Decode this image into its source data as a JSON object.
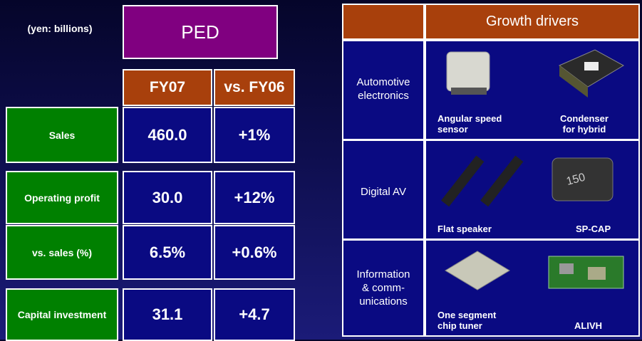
{
  "unit_note": "(yen: billions)",
  "segment": "PED",
  "columns": [
    "FY07",
    "vs. FY06"
  ],
  "rows": [
    {
      "label": "Sales",
      "values": [
        "460.0",
        "+1%"
      ]
    },
    {
      "label": "Operating profit",
      "values": [
        "30.0",
        "+12%"
      ]
    },
    {
      "label": "vs. sales (%)",
      "values": [
        "6.5%",
        "+0.6%"
      ]
    },
    {
      "label": "Capital investment",
      "values": [
        "31.1",
        "+4.7"
      ]
    }
  ],
  "drivers": {
    "title": "Growth drivers",
    "rows": [
      {
        "category": [
          "Automotive",
          "electronics"
        ],
        "items": [
          [
            "Angular speed",
            "sensor"
          ],
          [
            "Condenser",
            "for hybrid"
          ]
        ]
      },
      {
        "category": [
          "Digital AV"
        ],
        "items": [
          [
            "Flat speaker"
          ],
          [
            "SP-CAP"
          ]
        ]
      },
      {
        "category": [
          "Information",
          "& comm-",
          "unications"
        ],
        "items": [
          [
            "One segment",
            "chip tuner"
          ],
          [
            "ALIVH"
          ]
        ]
      }
    ]
  }
}
